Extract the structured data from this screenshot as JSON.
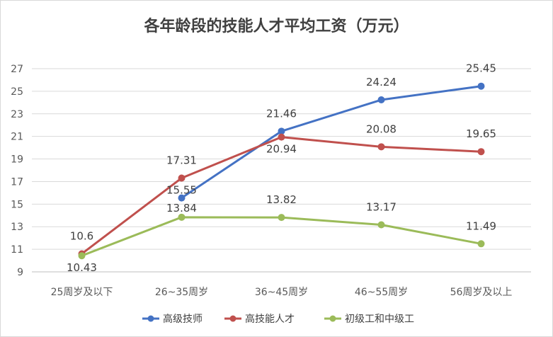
{
  "chart_data": {
    "type": "line",
    "title": "各年龄段的技能人才平均工资（万元）",
    "categories": [
      "25周岁及以下",
      "26~35周岁",
      "36~45周岁",
      "46~55周岁",
      "56周岁及以上"
    ],
    "ylim": [
      9,
      27
    ],
    "yticks": [
      9,
      11,
      13,
      15,
      17,
      19,
      21,
      23,
      25,
      27
    ],
    "grid": true,
    "legend_position": "bottom",
    "series": [
      {
        "name": "高级技师",
        "color": "#4472c4",
        "values": [
          null,
          15.55,
          21.46,
          24.24,
          25.45
        ],
        "labels": [
          "",
          "15.55",
          "21.46",
          "24.24",
          "25.45"
        ]
      },
      {
        "name": "高技能人才",
        "color": "#c0504d",
        "values": [
          10.6,
          17.31,
          20.94,
          20.08,
          19.65
        ],
        "labels": [
          "10.6",
          "17.31",
          "20.94",
          "20.08",
          "19.65"
        ]
      },
      {
        "name": "初级工和中级工",
        "color": "#9bbb59",
        "values": [
          10.43,
          13.84,
          13.82,
          13.17,
          11.49
        ],
        "labels": [
          "10.43",
          "13.84",
          "13.82",
          "13.17",
          "11.49"
        ]
      }
    ]
  }
}
